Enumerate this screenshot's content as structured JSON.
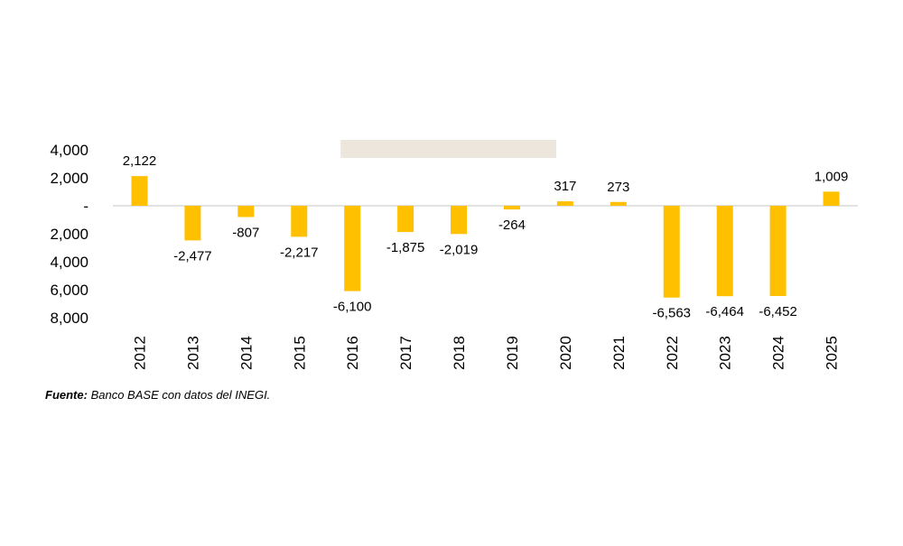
{
  "chart_data": {
    "type": "bar",
    "title": "",
    "xlabel": "",
    "ylabel": "",
    "categories": [
      "2012",
      "2013",
      "2014",
      "2015",
      "2016",
      "2017",
      "2018",
      "2019",
      "2020",
      "2021",
      "2022",
      "2023",
      "2024",
      "2025"
    ],
    "values": [
      2122,
      -2477,
      -807,
      -2217,
      -6100,
      -1875,
      -2019,
      -264,
      317,
      273,
      -6563,
      -6464,
      -6452,
      1009
    ],
    "data_labels": [
      "2,122",
      "-2,477",
      "-807",
      "-2,217",
      "-6,100",
      "-1,875",
      "-2,019",
      "-264",
      "317",
      "273",
      "-6,563",
      "-6,464",
      "-6,452",
      "1,009"
    ],
    "ylim": [
      -8000,
      4000
    ],
    "y_ticks": [
      4000,
      2000,
      0,
      -2000,
      -4000,
      -6000,
      -8000
    ],
    "y_tick_labels": [
      "4,000",
      "2,000",
      "-",
      "2,000",
      "4,000",
      "6,000",
      "8,000"
    ],
    "grid": false,
    "legend": "none",
    "highlight_band": {
      "from": "2016",
      "to": "2019"
    }
  },
  "colors": {
    "bar": "#FFC000",
    "axis": "#D9D9D9",
    "band": "#EDE6DD",
    "text": "#000000"
  },
  "source": {
    "label": "Fuente:",
    "text": "Banco BASE con datos del INEGI."
  }
}
